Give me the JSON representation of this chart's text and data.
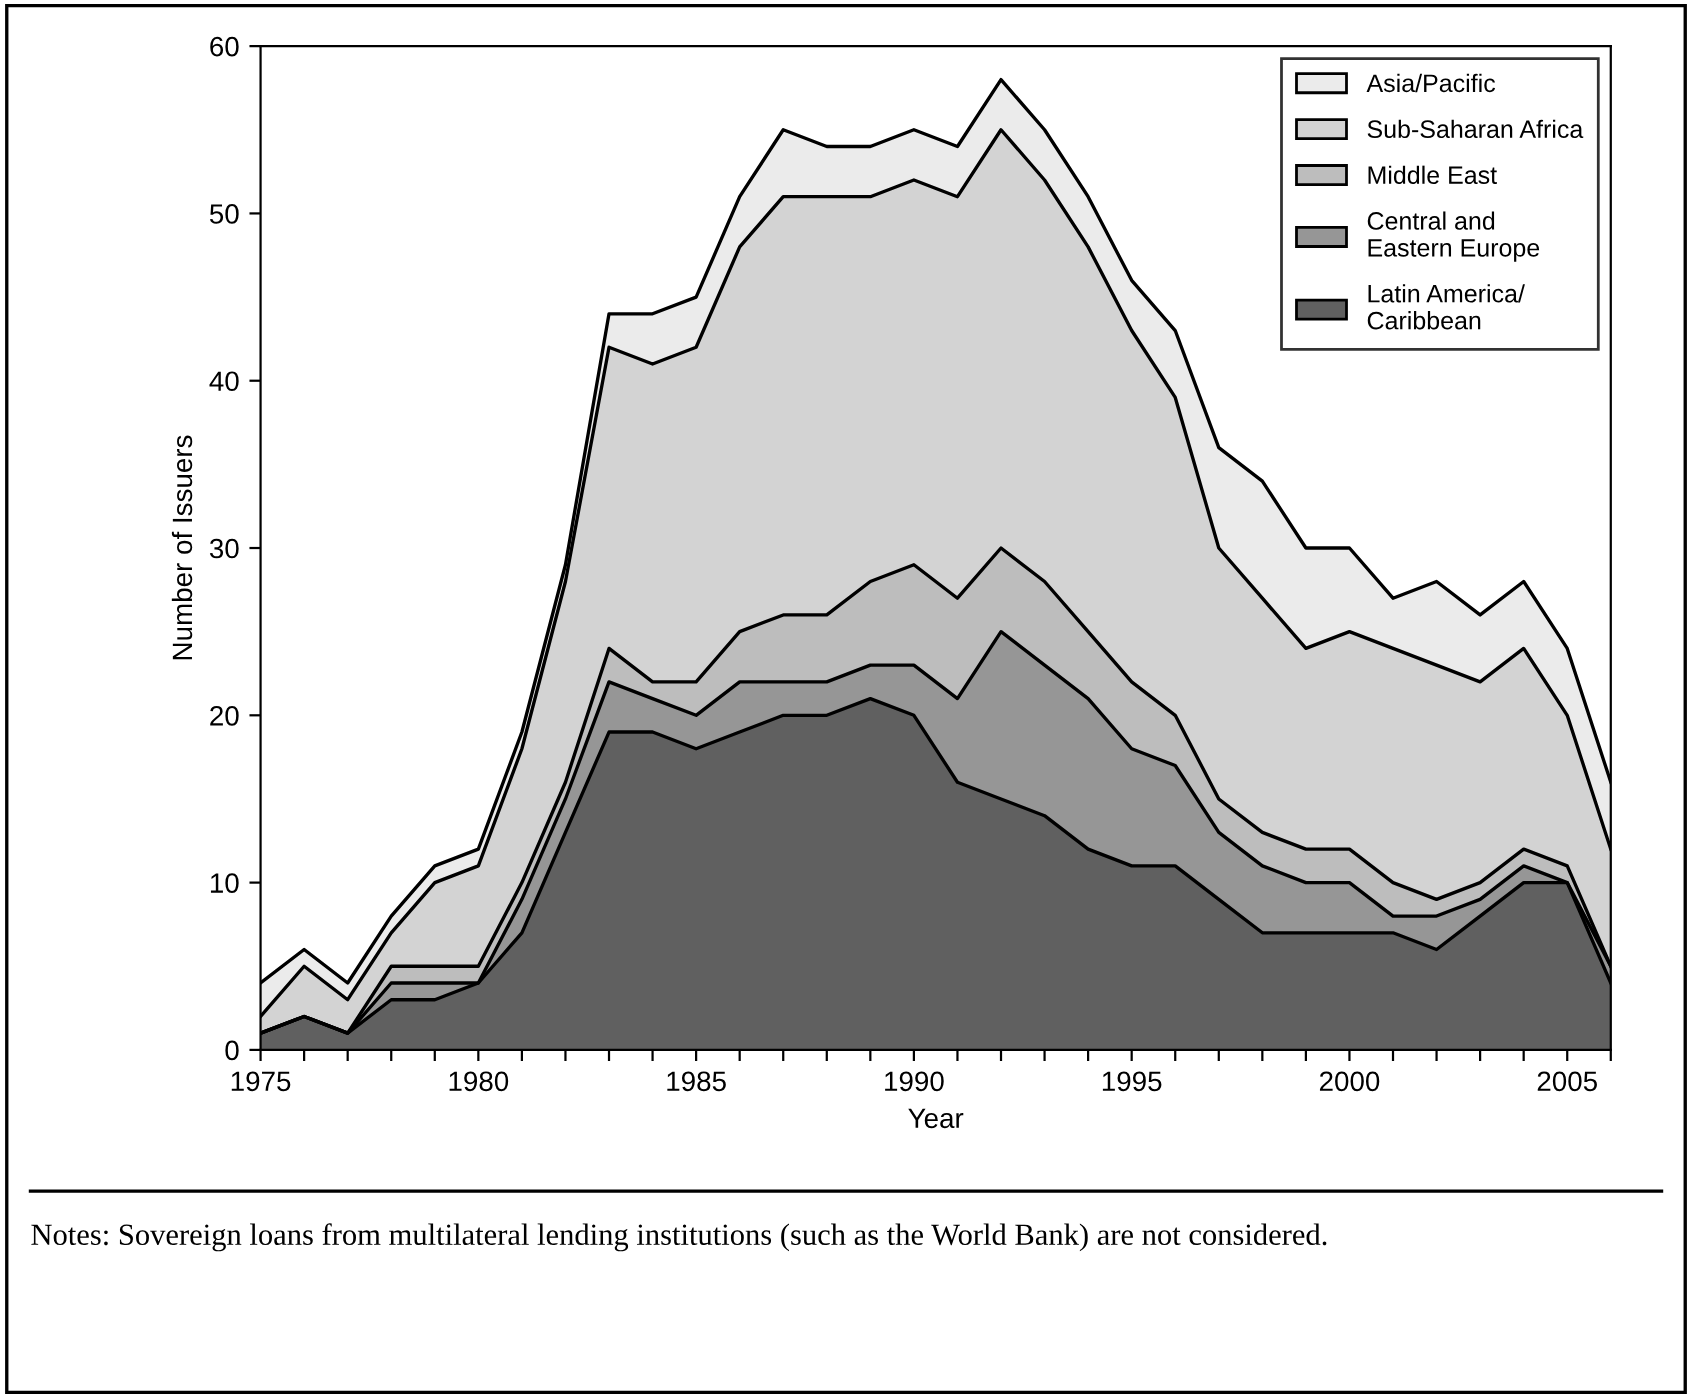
{
  "chart_data": {
    "type": "area",
    "stacked": true,
    "xlabel": "Year",
    "ylabel": "Number of Issuers",
    "x": [
      1975,
      1976,
      1977,
      1978,
      1979,
      1980,
      1981,
      1982,
      1983,
      1984,
      1985,
      1986,
      1987,
      1988,
      1989,
      1990,
      1991,
      1992,
      1993,
      1994,
      1995,
      1996,
      1997,
      1998,
      1999,
      2000,
      2001,
      2002,
      2003,
      2004,
      2005,
      2006
    ],
    "series": [
      {
        "name": "Latin America/\nCaribbean",
        "color": "#606060",
        "values": [
          1,
          2,
          1,
          3,
          3,
          4,
          7,
          13,
          19,
          19,
          18,
          19,
          20,
          20,
          21,
          20,
          16,
          15,
          14,
          12,
          11,
          11,
          9,
          7,
          7,
          7,
          7,
          6,
          8,
          10,
          10,
          4
        ]
      },
      {
        "name": "Central and\nEastern Europe",
        "color": "#969696",
        "values": [
          0,
          0,
          0,
          1,
          1,
          0,
          2,
          2,
          3,
          2,
          2,
          3,
          2,
          2,
          2,
          3,
          5,
          10,
          9,
          9,
          7,
          6,
          4,
          4,
          3,
          3,
          1,
          2,
          1,
          1,
          0,
          1
        ]
      },
      {
        "name": "Middle East",
        "color": "#bdbdbd",
        "values": [
          0,
          0,
          0,
          1,
          1,
          1,
          1,
          1,
          2,
          1,
          2,
          3,
          4,
          4,
          5,
          6,
          6,
          5,
          5,
          4,
          4,
          3,
          2,
          2,
          2,
          2,
          2,
          1,
          1,
          1,
          1,
          0
        ]
      },
      {
        "name": "Sub-Saharan Africa",
        "color": "#d3d3d3",
        "values": [
          1,
          3,
          2,
          2,
          5,
          6,
          8,
          12,
          18,
          19,
          20,
          23,
          25,
          25,
          23,
          23,
          24,
          25,
          24,
          23,
          21,
          19,
          15,
          14,
          12,
          13,
          14,
          14,
          12,
          12,
          9,
          7
        ]
      },
      {
        "name": "Asia/Pacific",
        "color": "#ebebeb",
        "values": [
          2,
          1,
          1,
          1,
          1,
          1,
          1,
          1,
          2,
          3,
          3,
          3,
          4,
          3,
          3,
          3,
          3,
          3,
          3,
          3,
          3,
          4,
          6,
          7,
          6,
          5,
          3,
          5,
          4,
          4,
          4,
          4
        ]
      }
    ],
    "xlim": [
      1975,
      2006
    ],
    "ylim": [
      0,
      60
    ],
    "xticks": [
      1975,
      {
        "value": 1976,
        "label": null
      },
      {
        "value": 1977,
        "label": null
      },
      {
        "value": 1978,
        "label": null
      },
      {
        "value": 1979,
        "label": null
      },
      1980,
      {
        "value": 1981,
        "label": null
      },
      {
        "value": 1982,
        "label": null
      },
      {
        "value": 1983,
        "label": null
      },
      {
        "value": 1984,
        "label": null
      },
      1985,
      {
        "value": 1986,
        "label": null
      },
      {
        "value": 1987,
        "label": null
      },
      {
        "value": 1988,
        "label": null
      },
      {
        "value": 1989,
        "label": null
      },
      1990,
      {
        "value": 1991,
        "label": null
      },
      {
        "value": 1992,
        "label": null
      },
      {
        "value": 1993,
        "label": null
      },
      {
        "value": 1994,
        "label": null
      },
      1995,
      {
        "value": 1996,
        "label": null
      },
      {
        "value": 1997,
        "label": null
      },
      {
        "value": 1998,
        "label": null
      },
      {
        "value": 1999,
        "label": null
      },
      2000,
      {
        "value": 2001,
        "label": null
      },
      {
        "value": 2002,
        "label": null
      },
      {
        "value": 2003,
        "label": null
      },
      {
        "value": 2004,
        "label": null
      },
      2005,
      {
        "value": 2006,
        "label": null
      }
    ],
    "yticks": [
      0,
      10,
      20,
      30,
      40,
      50,
      60
    ],
    "grid": false,
    "legend": "top right",
    "annotations": [
      "Notes: Sovereign loans from multilateral lending institutions (such as the World Bank) are not considered."
    ]
  }
}
